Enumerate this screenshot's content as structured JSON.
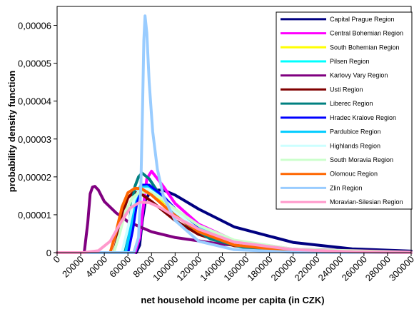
{
  "chart_data": {
    "type": "line",
    "title": "",
    "xlabel": "net household income per capita (in CZK)",
    "ylabel": "probability density function",
    "xlim": [
      0,
      300000
    ],
    "ylim": [
      0,
      6.5e-05
    ],
    "x_ticks": [
      0,
      20000,
      40000,
      60000,
      80000,
      100000,
      120000,
      140000,
      160000,
      180000,
      200000,
      220000,
      240000,
      260000,
      280000,
      300000
    ],
    "x_tick_labels": [
      "0",
      "20000",
      "40000",
      "60000",
      "80000",
      "100000",
      "120000",
      "140000",
      "160000",
      "180000",
      "200000",
      "220000",
      "240000",
      "260000",
      "280000",
      "300000"
    ],
    "y_ticks": [
      0,
      1e-05,
      2e-05,
      3e-05,
      4e-05,
      5e-05,
      6e-05
    ],
    "y_tick_labels": [
      "0",
      "0,00001",
      "0,00002",
      "0,00003",
      "0,00004",
      "0,00005",
      "0,00006"
    ],
    "grid": false,
    "legend_position": "top-right",
    "series": [
      {
        "name": "Capital Prague Region",
        "color": "#000080",
        "x": [
          0,
          67000,
          70000,
          72000,
          75000,
          80000,
          90000,
          100000,
          120000,
          150000,
          200000,
          250000,
          300000
        ],
        "y": [
          0,
          0,
          2e-06,
          8e-06,
          1.4e-05,
          1.65e-05,
          1.65e-05,
          1.52e-05,
          1.15e-05,
          6.8e-06,
          2.7e-06,
          1e-06,
          4e-07
        ]
      },
      {
        "name": "Central Bohemian Region",
        "color": "#ff00ff",
        "x": [
          0,
          66000,
          70000,
          73000,
          76000,
          80000,
          90000,
          100000,
          120000,
          150000,
          200000,
          250000,
          300000
        ],
        "y": [
          0,
          0,
          4e-06,
          1.2e-05,
          1.95e-05,
          2.15e-05,
          1.75e-05,
          1.3e-05,
          7.5e-06,
          3.2e-06,
          9e-07,
          3e-07,
          1e-07
        ]
      },
      {
        "name": "South Bohemian Region",
        "color": "#ffff00",
        "x": [
          0,
          58000,
          63000,
          68000,
          74000,
          80000,
          90000,
          100000,
          120000,
          150000,
          200000,
          250000,
          300000
        ],
        "y": [
          0,
          0,
          8e-06,
          1.45e-05,
          1.65e-05,
          1.6e-05,
          1.35e-05,
          1.1e-05,
          6.5e-06,
          2.7e-06,
          7e-07,
          2e-07,
          0
        ]
      },
      {
        "name": "Pilsen Region",
        "color": "#00ffff",
        "x": [
          0,
          56000,
          61000,
          66000,
          71000,
          78000,
          90000,
          100000,
          120000,
          150000,
          200000,
          250000,
          300000
        ],
        "y": [
          0,
          0,
          7e-06,
          1.45e-05,
          1.78e-05,
          1.75e-05,
          1.45e-05,
          1.15e-05,
          6.5e-06,
          2.6e-06,
          7e-07,
          2e-07,
          0
        ]
      },
      {
        "name": "Karlovy Vary Region",
        "color": "#800080",
        "x": [
          0,
          23000,
          26000,
          28000,
          30000,
          32000,
          35000,
          40000,
          50000,
          60000,
          80000,
          100000,
          140000,
          200000,
          300000
        ],
        "y": [
          0,
          0,
          8e-06,
          1.55e-05,
          1.73e-05,
          1.75e-05,
          1.65e-05,
          1.35e-05,
          1.05e-05,
          8.2e-06,
          5.5e-06,
          4e-06,
          2.2e-06,
          9e-07,
          2e-07
        ]
      },
      {
        "name": "Usti Region",
        "color": "#800000",
        "x": [
          0,
          48000,
          52000,
          56000,
          60000,
          65000,
          70000,
          80000,
          90000,
          100000,
          120000,
          150000,
          200000,
          300000
        ],
        "y": [
          0,
          0,
          5e-06,
          1.1e-05,
          1.45e-05,
          1.6e-05,
          1.58e-05,
          1.35e-05,
          1.1e-05,
          8.5e-06,
          4.8e-06,
          1.8e-06,
          4e-07,
          0
        ]
      },
      {
        "name": "Liberec Region",
        "color": "#008080",
        "x": [
          0,
          56000,
          60000,
          63000,
          66000,
          69000,
          72000,
          78000,
          85000,
          95000,
          110000,
          130000,
          160000,
          200000,
          300000
        ],
        "y": [
          0,
          0,
          5e-06,
          1.2e-05,
          1.75e-05,
          2e-05,
          2.1e-05,
          1.95e-05,
          1.62e-05,
          1.22e-05,
          7.5e-06,
          3.6e-06,
          1.2e-06,
          3e-07,
          0
        ]
      },
      {
        "name": "Hradec Kralove Region",
        "color": "#0000ff",
        "x": [
          0,
          60000,
          64000,
          68000,
          72000,
          78000,
          90000,
          100000,
          120000,
          150000,
          200000,
          300000
        ],
        "y": [
          0,
          0,
          6e-06,
          1.42e-05,
          1.78e-05,
          1.78e-05,
          1.48e-05,
          1.15e-05,
          6.2e-06,
          2.2e-06,
          5e-07,
          0
        ]
      },
      {
        "name": "Pardubice Region",
        "color": "#00ccff",
        "x": [
          0,
          58000,
          62000,
          66000,
          70000,
          76000,
          88000,
          100000,
          120000,
          150000,
          200000,
          300000
        ],
        "y": [
          0,
          0,
          6e-06,
          1.38e-05,
          1.72e-05,
          1.74e-05,
          1.45e-05,
          1.1e-05,
          6e-06,
          2.2e-06,
          5e-07,
          0
        ]
      },
      {
        "name": "Highlands Region",
        "color": "#ccffff",
        "x": [
          0,
          55000,
          60000,
          65000,
          70000,
          77000,
          90000,
          100000,
          120000,
          150000,
          200000,
          300000
        ],
        "y": [
          0,
          0,
          6.5e-06,
          1.38e-05,
          1.68e-05,
          1.68e-05,
          1.4e-05,
          1.08e-05,
          6e-06,
          2.2e-06,
          5e-07,
          0
        ]
      },
      {
        "name": "South Moravia Region",
        "color": "#ccffcc",
        "x": [
          0,
          48000,
          53000,
          58000,
          64000,
          70000,
          80000,
          90000,
          100000,
          120000,
          150000,
          200000,
          300000
        ],
        "y": [
          0,
          0,
          5e-06,
          1.1e-05,
          1.45e-05,
          1.6e-05,
          1.58e-05,
          1.4e-05,
          1.15e-05,
          7.2e-06,
          3.3e-06,
          9e-07,
          1e-07
        ]
      },
      {
        "name": "Olomouc Region",
        "color": "#ff6600",
        "x": [
          0,
          45000,
          50000,
          55000,
          60000,
          66000,
          72000,
          80000,
          90000,
          100000,
          120000,
          150000,
          200000,
          300000
        ],
        "y": [
          0,
          0,
          5.5e-06,
          1.2e-05,
          1.58e-05,
          1.7e-05,
          1.68e-05,
          1.52e-05,
          1.25e-05,
          9.8e-06,
          5.5e-06,
          2e-06,
          4e-07,
          0
        ]
      },
      {
        "name": "Zlin Region",
        "color": "#99ccff",
        "x": [
          0,
          65000,
          69000,
          71000,
          72500,
          73500,
          74500,
          76000,
          78000,
          81000,
          85000,
          90000,
          100000,
          120000,
          150000,
          200000,
          300000
        ],
        "y": [
          0,
          0,
          4e-06,
          1.8e-05,
          4e-05,
          5.6e-05,
          6.25e-05,
          5.8e-05,
          4.5e-05,
          3.2e-05,
          2.2e-05,
          1.5e-05,
          8.5e-06,
          3e-06,
          8e-07,
          1e-07,
          0
        ]
      },
      {
        "name": "Moravian-Silesian Region",
        "color": "#ff99cc",
        "x": [
          0,
          22000,
          35000,
          45000,
          55000,
          62000,
          70000,
          78000,
          88000,
          100000,
          120000,
          150000,
          200000,
          250000,
          300000
        ],
        "y": [
          0,
          0,
          5e-07,
          3e-06,
          8.5e-06,
          1.18e-05,
          1.33e-05,
          1.32e-05,
          1.18e-05,
          9.5e-06,
          6.2e-06,
          2.8e-06,
          8e-07,
          2e-07,
          0
        ]
      }
    ]
  }
}
